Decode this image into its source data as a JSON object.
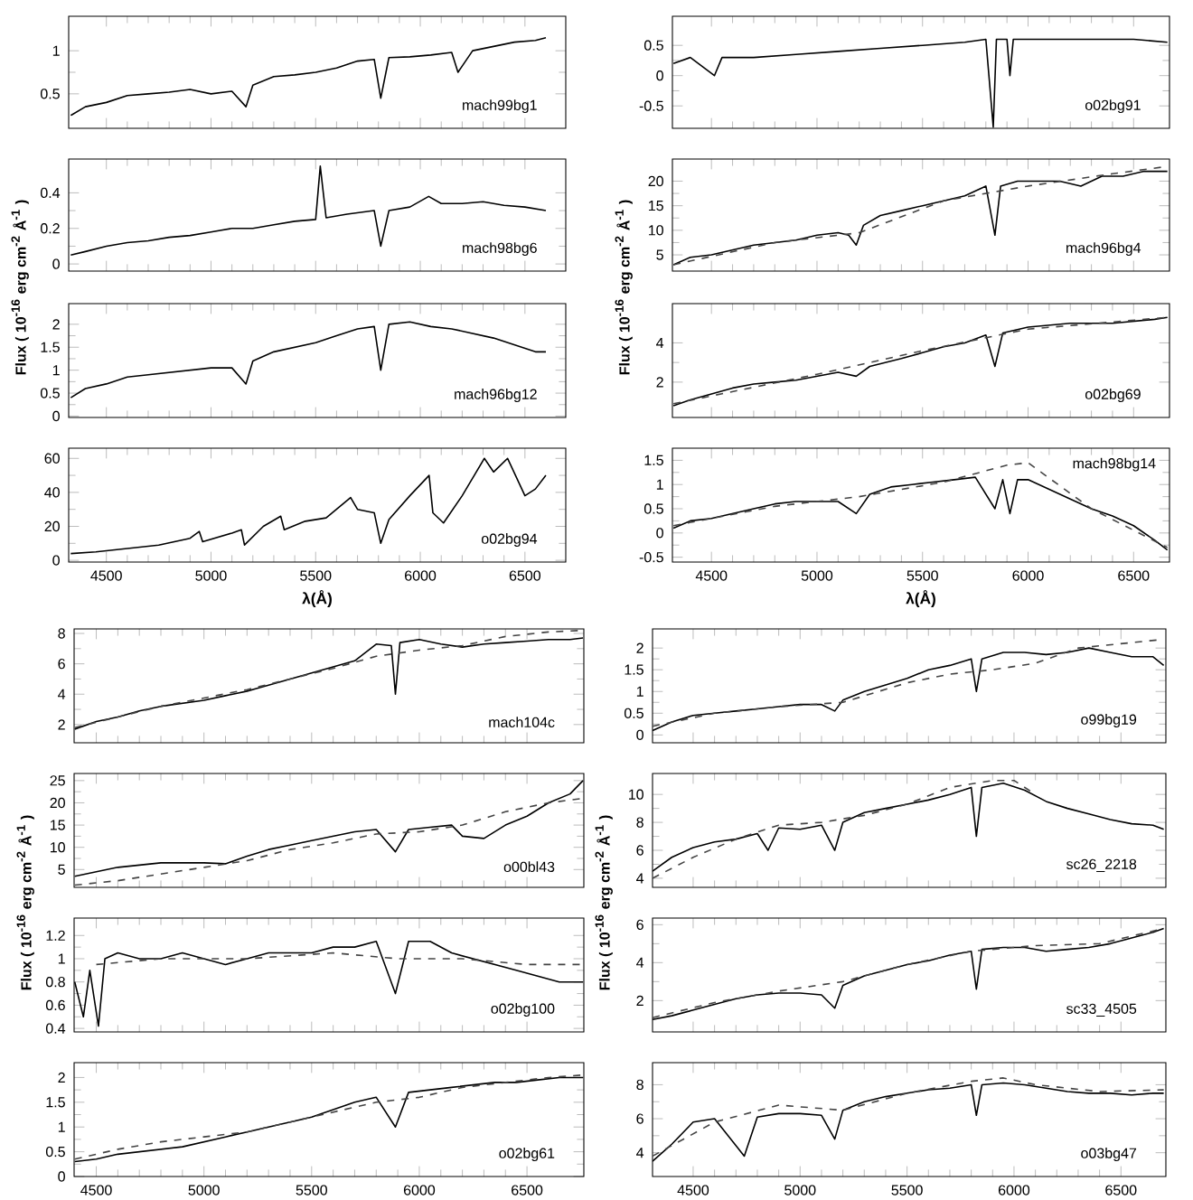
{
  "chart_data": [
    {
      "type": "line",
      "x": [
        4330,
        4400,
        4500,
        4600,
        4700,
        4800,
        4900,
        5000,
        5100,
        5167,
        5200,
        5300,
        5400,
        5500,
        5600,
        5700,
        5780,
        5811,
        5850,
        5950,
        6050,
        6150,
        6180,
        6250,
        6350,
        6450,
        6550,
        6600
      ],
      "series": [
        {
          "color": "#000000",
          "line_style": "solid",
          "values": [
            0.25,
            0.35,
            0.4,
            0.48,
            0.5,
            0.52,
            0.55,
            0.5,
            0.53,
            0.35,
            0.6,
            0.7,
            0.72,
            0.75,
            0.8,
            0.88,
            0.9,
            0.45,
            0.92,
            0.93,
            0.95,
            0.98,
            0.75,
            1.0,
            1.05,
            1.1,
            1.12,
            1.15
          ]
        }
      ],
      "xlim": [
        4320,
        6695
      ],
      "xticks": [
        4500,
        5000,
        5500,
        6000,
        6500
      ],
      "ylim": [
        0.1,
        1.4
      ],
      "yticks": [
        0.5,
        1
      ],
      "annotations": [
        "mach99bg1"
      ],
      "tick_labels": "y"
    },
    {
      "type": "line",
      "x": [
        4320,
        4400,
        4514,
        4550,
        4700,
        4900,
        5100,
        5300,
        5500,
        5700,
        5800,
        5835,
        5850,
        5900,
        5914,
        5930,
        6100,
        6300,
        6500,
        6660
      ],
      "series": [
        {
          "color": "#000000",
          "line_style": "solid",
          "values": [
            0.2,
            0.3,
            0.0,
            0.3,
            0.3,
            0.35,
            0.4,
            0.45,
            0.5,
            0.55,
            0.6,
            -0.85,
            0.6,
            0.6,
            0.0,
            0.6,
            0.6,
            0.6,
            0.6,
            0.55
          ]
        }
      ],
      "xlim": [
        4315,
        6670
      ],
      "xticks": [
        4500,
        5000,
        5500,
        6000,
        6500
      ],
      "ylim": [
        -0.87,
        0.98
      ],
      "yticks": [
        -0.5,
        0,
        0.5
      ],
      "annotations": [
        "o02bg91"
      ],
      "tick_labels": "y"
    },
    {
      "type": "line",
      "x": [
        4330,
        4400,
        4500,
        4600,
        4700,
        4800,
        4900,
        5000,
        5100,
        5200,
        5300,
        5400,
        5500,
        5522,
        5550,
        5650,
        5780,
        5811,
        5850,
        5950,
        6040,
        6100,
        6200,
        6300,
        6400,
        6500,
        6600
      ],
      "series": [
        {
          "color": "#000000",
          "line_style": "solid",
          "values": [
            0.05,
            0.07,
            0.1,
            0.12,
            0.13,
            0.15,
            0.16,
            0.18,
            0.2,
            0.2,
            0.22,
            0.24,
            0.25,
            0.55,
            0.26,
            0.28,
            0.3,
            0.1,
            0.3,
            0.32,
            0.38,
            0.34,
            0.34,
            0.35,
            0.33,
            0.32,
            0.3
          ]
        }
      ],
      "xlim": [
        4320,
        6695
      ],
      "xticks": [
        4500,
        5000,
        5500,
        6000,
        6500
      ],
      "ylim": [
        -0.04,
        0.59
      ],
      "yticks": [
        0,
        0.2,
        0.4
      ],
      "annotations": [
        "mach98bg6"
      ],
      "tick_labels": "y"
    },
    {
      "type": "line",
      "x": [
        4320,
        4400,
        4500,
        4600,
        4700,
        4800,
        4900,
        5000,
        5100,
        5150,
        5186,
        5220,
        5300,
        5400,
        5500,
        5600,
        5700,
        5800,
        5843,
        5870,
        5950,
        6050,
        6150,
        6250,
        6350,
        6450,
        6550,
        6660
      ],
      "series": [
        {
          "color": "#000000",
          "line_style": "solid",
          "values": [
            3,
            4.5,
            5,
            6,
            7,
            7.5,
            8,
            9,
            9.5,
            9,
            7,
            11,
            13,
            14,
            15,
            16,
            17,
            19,
            9,
            19,
            20,
            20,
            20,
            19,
            21,
            21,
            22,
            22
          ]
        },
        {
          "x": [
            4320,
            4800,
            5200,
            5600,
            6000,
            6400,
            6660
          ],
          "color": "#444444",
          "line_style": "dashed",
          "values": [
            3,
            7.5,
            9.5,
            16,
            19,
            21.5,
            23
          ]
        }
      ],
      "xlim": [
        4315,
        6670
      ],
      "xticks": [
        4500,
        5000,
        5500,
        6000,
        6500
      ],
      "ylim": [
        1.7,
        24.5
      ],
      "yticks": [
        5,
        10,
        15,
        20
      ],
      "annotations": [
        "mach96bg4"
      ],
      "tick_labels": "y"
    },
    {
      "type": "line",
      "x": [
        4330,
        4400,
        4500,
        4600,
        4700,
        4800,
        4900,
        5000,
        5100,
        5167,
        5200,
        5300,
        5400,
        5500,
        5600,
        5700,
        5780,
        5811,
        5850,
        5950,
        6050,
        6150,
        6250,
        6350,
        6450,
        6550,
        6600
      ],
      "series": [
        {
          "color": "#000000",
          "line_style": "solid",
          "values": [
            0.4,
            0.6,
            0.7,
            0.85,
            0.9,
            0.95,
            1.0,
            1.05,
            1.05,
            0.7,
            1.2,
            1.4,
            1.5,
            1.6,
            1.75,
            1.9,
            1.95,
            1.0,
            2.0,
            2.05,
            1.95,
            1.9,
            1.8,
            1.7,
            1.55,
            1.4,
            1.4
          ]
        }
      ],
      "xlim": [
        4320,
        6695
      ],
      "xticks": [
        4500,
        5000,
        5500,
        6000,
        6500
      ],
      "ylim": [
        -0.03,
        2.45
      ],
      "yticks": [
        0,
        0.5,
        1,
        1.5,
        2
      ],
      "ylabel": "Flux ( 10$^{-16}$ erg cm$^{-2}$ Å$^{-1}$ )",
      "annotations": [
        "mach96bg12"
      ],
      "tick_labels": "y"
    },
    {
      "type": "line",
      "x": [
        4320,
        4400,
        4500,
        4600,
        4700,
        4800,
        4900,
        5000,
        5100,
        5186,
        5250,
        5400,
        5500,
        5600,
        5700,
        5800,
        5843,
        5880,
        6000,
        6100,
        6200,
        6300,
        6400,
        6500,
        6600,
        6660
      ],
      "series": [
        {
          "color": "#000000",
          "line_style": "solid",
          "values": [
            0.8,
            1.1,
            1.4,
            1.7,
            1.9,
            2.0,
            2.1,
            2.3,
            2.5,
            2.3,
            2.8,
            3.2,
            3.5,
            3.8,
            4.0,
            4.4,
            2.8,
            4.5,
            4.8,
            4.9,
            5.0,
            5.0,
            5.0,
            5.1,
            5.2,
            5.3
          ]
        },
        {
          "x": [
            4320,
            5000,
            5500,
            6000,
            6660
          ],
          "color": "#444444",
          "line_style": "dashed",
          "values": [
            0.9,
            2.4,
            3.6,
            4.7,
            5.3
          ]
        }
      ],
      "xlim": [
        4315,
        6670
      ],
      "xticks": [
        4500,
        5000,
        5500,
        6000,
        6500
      ],
      "ylim": [
        0.2,
        6.0
      ],
      "yticks": [
        2,
        4
      ],
      "ylabel": "Flux ( 10$^{-16}$ erg cm$^{-2}$ Å$^{-1}$ )",
      "annotations": [
        "o02bg69"
      ],
      "tick_labels": "y"
    },
    {
      "type": "line",
      "x": [
        4330,
        4450,
        4600,
        4750,
        4900,
        4944,
        4960,
        5100,
        5145,
        5160,
        5250,
        5333,
        5350,
        5450,
        5550,
        5667,
        5700,
        5780,
        5811,
        5850,
        5950,
        6042,
        6060,
        6111,
        6200,
        6306,
        6350,
        6417,
        6500,
        6550,
        6600
      ],
      "series": [
        {
          "color": "#000000",
          "line_style": "solid",
          "values": [
            4,
            5,
            7,
            9,
            13,
            17,
            11,
            16,
            18,
            9,
            20,
            26,
            18,
            23,
            25,
            37,
            30,
            28,
            10,
            24,
            38,
            50,
            28,
            22,
            38,
            60,
            52,
            60,
            38,
            42,
            50
          ]
        }
      ],
      "xlim": [
        4320,
        6695
      ],
      "xticks": [
        4500,
        5000,
        5500,
        6000,
        6500
      ],
      "ylim": [
        -1,
        66
      ],
      "yticks": [
        0,
        20,
        40,
        60
      ],
      "xlabel": "λ(Å)",
      "annotations": [
        "o02bg94"
      ]
    },
    {
      "type": "line",
      "x": [
        4320,
        4400,
        4500,
        4600,
        4700,
        4800,
        4900,
        5000,
        5100,
        5186,
        5250,
        5350,
        5450,
        5550,
        5650,
        5750,
        5843,
        5880,
        5914,
        5950,
        6000,
        6100,
        6200,
        6300,
        6400,
        6500,
        6600,
        6660
      ],
      "series": [
        {
          "color": "#000000",
          "line_style": "solid",
          "values": [
            0.1,
            0.25,
            0.3,
            0.4,
            0.5,
            0.6,
            0.65,
            0.65,
            0.65,
            0.4,
            0.8,
            0.95,
            1.0,
            1.05,
            1.1,
            1.15,
            0.5,
            1.1,
            0.4,
            1.1,
            1.1,
            0.9,
            0.7,
            0.5,
            0.35,
            0.15,
            -0.15,
            -0.35
          ]
        },
        {
          "x": [
            4320,
            4800,
            5200,
            5600,
            5900,
            6000,
            6300,
            6660
          ],
          "color": "#444444",
          "line_style": "dashed",
          "values": [
            0.15,
            0.55,
            0.75,
            1.05,
            1.4,
            1.45,
            0.5,
            -0.3
          ]
        }
      ],
      "xlim": [
        4315,
        6670
      ],
      "xticks": [
        4500,
        5000,
        5500,
        6000,
        6500
      ],
      "ylim": [
        -0.6,
        1.75
      ],
      "yticks": [
        -0.5,
        0,
        0.5,
        1,
        1.5
      ],
      "xlabel": "λ(Å)",
      "annotations": [
        "mach98bg14"
      ]
    },
    {
      "type": "line",
      "x": [
        4400,
        4500,
        4600,
        4700,
        4800,
        4900,
        5000,
        5100,
        5200,
        5300,
        5400,
        5500,
        5600,
        5700,
        5800,
        5870,
        5889,
        5910,
        6000,
        6100,
        6200,
        6300,
        6400,
        6500,
        6600,
        6700,
        6760
      ],
      "series": [
        {
          "color": "#000000",
          "line_style": "solid",
          "values": [
            1.7,
            2.2,
            2.5,
            2.9,
            3.2,
            3.4,
            3.6,
            3.9,
            4.2,
            4.6,
            5.0,
            5.4,
            5.8,
            6.2,
            7.3,
            7.2,
            4.0,
            7.4,
            7.6,
            7.3,
            7.1,
            7.3,
            7.4,
            7.5,
            7.6,
            7.6,
            7.7
          ]
        },
        {
          "x": [
            4400,
            4800,
            5200,
            5600,
            5800,
            6000,
            6200,
            6400,
            6600,
            6760
          ],
          "color": "#444444",
          "line_style": "dashed",
          "values": [
            1.8,
            3.2,
            4.3,
            5.7,
            6.5,
            6.9,
            7.2,
            7.8,
            8.1,
            8.2
          ]
        }
      ],
      "xlim": [
        4397,
        6764
      ],
      "xticks": [
        4500,
        5000,
        5500,
        6000,
        6500
      ],
      "ylim": [
        0.8,
        8.3
      ],
      "yticks": [
        2,
        4,
        6,
        8
      ],
      "annotations": [
        "mach104c"
      ],
      "tick_labels": "y"
    },
    {
      "type": "line",
      "x": [
        4310,
        4400,
        4500,
        4600,
        4700,
        4800,
        4900,
        5000,
        5100,
        5162,
        5200,
        5300,
        5400,
        5500,
        5600,
        5700,
        5800,
        5824,
        5850,
        5950,
        6050,
        6150,
        6250,
        6350,
        6450,
        6550,
        6650,
        6700
      ],
      "series": [
        {
          "color": "#000000",
          "line_style": "solid",
          "values": [
            0.1,
            0.3,
            0.45,
            0.5,
            0.55,
            0.6,
            0.65,
            0.7,
            0.7,
            0.55,
            0.8,
            1.0,
            1.15,
            1.3,
            1.5,
            1.6,
            1.75,
            1.0,
            1.75,
            1.9,
            1.9,
            1.85,
            1.9,
            2.0,
            1.9,
            1.8,
            1.8,
            1.6
          ]
        },
        {
          "x": [
            4310,
            4600,
            4900,
            5200,
            5500,
            5700,
            5900,
            6100,
            6300,
            6500,
            6700
          ],
          "color": "#444444",
          "line_style": "dashed",
          "values": [
            0.2,
            0.5,
            0.65,
            0.75,
            1.2,
            1.4,
            1.5,
            1.65,
            2.0,
            2.1,
            2.2
          ]
        }
      ],
      "xlim": [
        4310,
        6710
      ],
      "xticks": [
        4500,
        5000,
        5500,
        6000,
        6500
      ],
      "ylim": [
        -0.18,
        2.44
      ],
      "yticks": [
        0,
        0.5,
        1,
        1.5,
        2
      ],
      "annotations": [
        "o99bg19"
      ],
      "tick_labels": "y"
    },
    {
      "type": "line",
      "x": [
        4400,
        4500,
        4600,
        4700,
        4800,
        4900,
        5000,
        5100,
        5200,
        5300,
        5400,
        5500,
        5600,
        5700,
        5800,
        5889,
        5950,
        6050,
        6150,
        6200,
        6300,
        6400,
        6500,
        6600,
        6700,
        6760
      ],
      "series": [
        {
          "color": "#000000",
          "line_style": "solid",
          "values": [
            3.5,
            4.5,
            5.5,
            6.0,
            6.5,
            6.5,
            6.5,
            6.3,
            8,
            9.5,
            10.5,
            11.5,
            12.5,
            13.5,
            14,
            9,
            14,
            14.5,
            15,
            12.5,
            12,
            15,
            17,
            20,
            22,
            25
          ]
        },
        {
          "x": [
            4400,
            4600,
            4800,
            5000,
            5200,
            5400,
            5600,
            5800,
            6000,
            6200,
            6400,
            6600,
            6760
          ],
          "color": "#444444",
          "line_style": "dashed",
          "values": [
            1.5,
            2.5,
            4,
            5.5,
            7,
            9.5,
            11,
            13,
            13.5,
            15,
            18,
            20,
            21
          ]
        }
      ],
      "xlim": [
        4397,
        6764
      ],
      "xticks": [
        4500,
        5000,
        5500,
        6000,
        6500
      ],
      "ylim": [
        1,
        26.6
      ],
      "yticks": [
        5,
        10,
        15,
        20,
        25
      ],
      "annotations": [
        "o00bl43"
      ],
      "tick_labels": "y"
    },
    {
      "type": "line",
      "x": [
        4310,
        4400,
        4500,
        4600,
        4700,
        4800,
        4850,
        4900,
        5000,
        5100,
        5162,
        5200,
        5300,
        5400,
        5500,
        5600,
        5700,
        5800,
        5824,
        5850,
        5950,
        6050,
        6150,
        6250,
        6350,
        6450,
        6550,
        6650,
        6700
      ],
      "series": [
        {
          "color": "#000000",
          "line_style": "solid",
          "values": [
            4.5,
            5.5,
            6.2,
            6.6,
            6.8,
            7.2,
            6.0,
            7.6,
            7.5,
            7.8,
            6.0,
            8.0,
            8.7,
            9.0,
            9.3,
            9.6,
            10.0,
            10.5,
            7.0,
            10.5,
            10.8,
            10.3,
            9.5,
            9.0,
            8.6,
            8.2,
            7.9,
            7.8,
            7.5
          ]
        },
        {
          "x": [
            4310,
            4500,
            4700,
            4900,
            5100,
            5300,
            5500,
            5700,
            5900,
            6000,
            6100
          ],
          "color": "#444444",
          "line_style": "dashed",
          "values": [
            4.0,
            5.5,
            6.8,
            7.8,
            8.0,
            8.5,
            9.3,
            10.5,
            11.0,
            11.0,
            10.0
          ]
        }
      ],
      "xlim": [
        4310,
        6710
      ],
      "xticks": [
        4500,
        5000,
        5500,
        6000,
        6500
      ],
      "ylim": [
        3.35,
        11.5
      ],
      "yticks": [
        4,
        6,
        8,
        10
      ],
      "annotations": [
        "sc26_2218"
      ],
      "tick_labels": "y"
    },
    {
      "type": "line",
      "x": [
        4400,
        4440,
        4470,
        4510,
        4540,
        4600,
        4700,
        4800,
        4900,
        5000,
        5100,
        5200,
        5300,
        5400,
        5500,
        5600,
        5700,
        5800,
        5889,
        5950,
        6050,
        6150,
        6250,
        6350,
        6450,
        6550,
        6650,
        6760
      ],
      "series": [
        {
          "color": "#000000",
          "line_style": "solid",
          "values": [
            0.8,
            0.5,
            0.9,
            0.42,
            1.0,
            1.05,
            1.0,
            1.0,
            1.05,
            1.0,
            0.95,
            1.0,
            1.05,
            1.05,
            1.05,
            1.1,
            1.1,
            1.15,
            0.7,
            1.15,
            1.15,
            1.05,
            1.0,
            0.95,
            0.9,
            0.85,
            0.8,
            0.8
          ]
        },
        {
          "x": [
            4500,
            4800,
            5200,
            5600,
            5900,
            6200,
            6500,
            6760
          ],
          "color": "#444444",
          "line_style": "dashed",
          "values": [
            0.95,
            1.0,
            1.0,
            1.05,
            1.0,
            1.0,
            0.95,
            0.95
          ]
        }
      ],
      "xlim": [
        4397,
        6764
      ],
      "xticks": [
        4500,
        5000,
        5500,
        6000,
        6500
      ],
      "ylim": [
        0.37,
        1.35
      ],
      "yticks": [
        0.4,
        0.6,
        0.8,
        1,
        1.2
      ],
      "ylabel": "Flux ( 10$^{-16}$ erg cm$^{-2}$ Å$^{-1}$ )",
      "annotations": [
        "o02bg100"
      ],
      "tick_labels": "y"
    },
    {
      "type": "line",
      "x": [
        4310,
        4400,
        4500,
        4600,
        4700,
        4800,
        4900,
        5000,
        5100,
        5162,
        5200,
        5300,
        5400,
        5500,
        5600,
        5700,
        5800,
        5824,
        5850,
        5950,
        6050,
        6150,
        6250,
        6350,
        6450,
        6550,
        6650,
        6700
      ],
      "series": [
        {
          "color": "#000000",
          "line_style": "solid",
          "values": [
            1.0,
            1.2,
            1.5,
            1.8,
            2.1,
            2.3,
            2.4,
            2.4,
            2.3,
            1.6,
            2.8,
            3.3,
            3.6,
            3.9,
            4.1,
            4.4,
            4.6,
            2.6,
            4.7,
            4.8,
            4.8,
            4.6,
            4.7,
            4.8,
            5.0,
            5.3,
            5.6,
            5.8
          ]
        },
        {
          "x": [
            4310,
            4600,
            4900,
            5200,
            5500,
            5800,
            6100,
            6400,
            6700
          ],
          "color": "#444444",
          "line_style": "dashed",
          "values": [
            1.1,
            1.9,
            2.5,
            3.0,
            3.9,
            4.6,
            4.9,
            5.0,
            5.8
          ]
        }
      ],
      "xlim": [
        4310,
        6710
      ],
      "xticks": [
        4500,
        5000,
        5500,
        6000,
        6500
      ],
      "ylim": [
        0.35,
        6.35
      ],
      "yticks": [
        2,
        4,
        6
      ],
      "ylabel": "Flux ( 10$^{-16}$ erg cm$^{-2}$ Å$^{-1}$ )",
      "annotations": [
        "sc33_4505"
      ],
      "tick_labels": "y"
    },
    {
      "type": "line",
      "x": [
        4400,
        4500,
        4600,
        4700,
        4800,
        4900,
        5000,
        5100,
        5200,
        5300,
        5400,
        5500,
        5600,
        5700,
        5800,
        5889,
        5950,
        6050,
        6150,
        6250,
        6350,
        6450,
        6550,
        6650,
        6760
      ],
      "series": [
        {
          "color": "#000000",
          "line_style": "solid",
          "values": [
            0.3,
            0.35,
            0.45,
            0.5,
            0.55,
            0.6,
            0.7,
            0.8,
            0.9,
            1.0,
            1.1,
            1.2,
            1.35,
            1.5,
            1.6,
            1.0,
            1.7,
            1.75,
            1.8,
            1.85,
            1.9,
            1.9,
            1.95,
            2.0,
            2.0
          ]
        },
        {
          "x": [
            4400,
            4600,
            4800,
            5000,
            5200,
            5400,
            5600,
            5800,
            6000,
            6200,
            6400,
            6600,
            6760
          ],
          "color": "#444444",
          "line_style": "dashed",
          "values": [
            0.35,
            0.55,
            0.7,
            0.8,
            0.9,
            1.1,
            1.3,
            1.5,
            1.6,
            1.8,
            1.9,
            2.0,
            2.05
          ]
        }
      ],
      "xlim": [
        4397,
        6764
      ],
      "xticks": [
        4500,
        5000,
        5500,
        6000,
        6500
      ],
      "ylim": [
        0,
        2.3
      ],
      "yticks": [
        0,
        0.5,
        1,
        1.5,
        2
      ],
      "annotations": [
        "o02bg61"
      ]
    },
    {
      "type": "line",
      "x": [
        4310,
        4400,
        4500,
        4600,
        4739,
        4800,
        4900,
        5000,
        5100,
        5162,
        5200,
        5300,
        5400,
        5500,
        5600,
        5700,
        5800,
        5824,
        5850,
        5950,
        6050,
        6150,
        6250,
        6350,
        6450,
        6550,
        6650,
        6700
      ],
      "series": [
        {
          "color": "#000000",
          "line_style": "solid",
          "values": [
            3.5,
            4.5,
            5.8,
            6.0,
            3.8,
            6.1,
            6.3,
            6.3,
            6.2,
            4.8,
            6.5,
            7.0,
            7.3,
            7.5,
            7.7,
            7.8,
            8.0,
            6.2,
            8.0,
            8.1,
            8.0,
            7.8,
            7.6,
            7.5,
            7.5,
            7.4,
            7.5,
            7.5
          ]
        },
        {
          "x": [
            4310,
            4600,
            4900,
            5200,
            5500,
            5800,
            5950,
            6100,
            6400,
            6700
          ],
          "color": "#444444",
          "line_style": "dashed",
          "values": [
            3.8,
            5.8,
            6.8,
            6.5,
            7.5,
            8.2,
            8.4,
            8.0,
            7.6,
            7.7
          ]
        }
      ],
      "xlim": [
        4310,
        6710
      ],
      "xticks": [
        4500,
        5000,
        5500,
        6000,
        6500
      ],
      "ylim": [
        2.6,
        9.3
      ],
      "yticks": [
        4,
        6,
        8
      ],
      "annotations": [
        "o03bg47"
      ]
    }
  ]
}
